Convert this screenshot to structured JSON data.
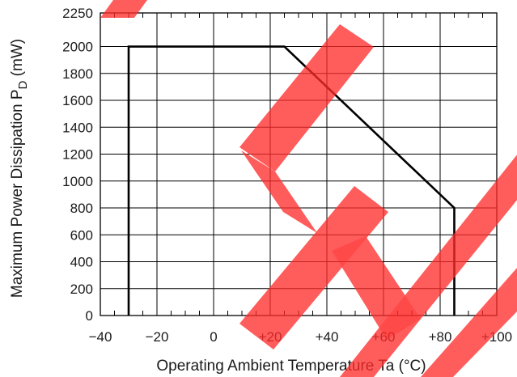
{
  "chart_data": {
    "type": "line",
    "title": "",
    "xlabel": "Operating Ambient Temperature Ta (°C)",
    "ylabel_main": "Maximum Power Dissipation P",
    "ylabel_sub": "D",
    "ylabel_unit": " (mW)",
    "xlim": [
      -40,
      100
    ],
    "ylim": [
      0,
      2250
    ],
    "x_ticks": [
      -40,
      -20,
      0,
      20,
      40,
      60,
      80,
      100
    ],
    "x_tick_labels": [
      "−40",
      "−20",
      "0",
      "+20",
      "+40",
      "+60",
      "+80",
      "+100"
    ],
    "y_ticks": [
      0,
      200,
      400,
      600,
      800,
      1000,
      1200,
      1400,
      1600,
      1800,
      2000,
      2250
    ],
    "y_tick_labels": [
      "0",
      "200",
      "400",
      "600",
      "800",
      "1000",
      "1200",
      "1400",
      "1600",
      "1800",
      "2000",
      "2250"
    ],
    "grid": true,
    "series": [
      {
        "x": [
          -30,
          -30,
          25,
          85,
          85
        ],
        "y": [
          0,
          2000,
          2000,
          800,
          0
        ],
        "color": "#000000"
      }
    ],
    "watermark_color": "#ff2a2a"
  }
}
